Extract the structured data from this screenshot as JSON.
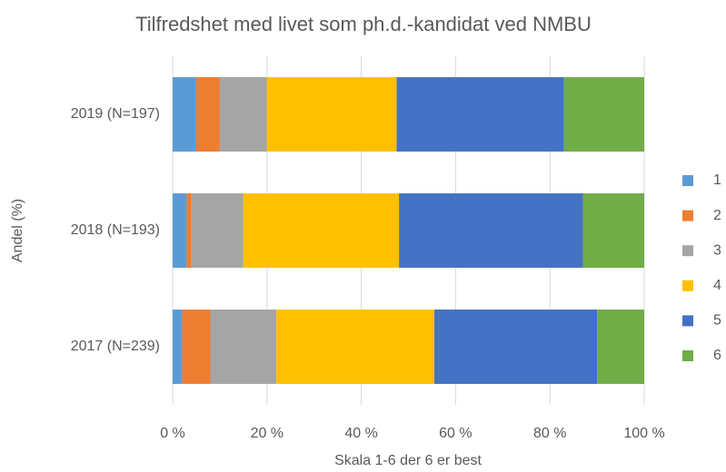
{
  "chart_data": {
    "type": "stacked_barh",
    "title": "Tilfredshet med livet som ph.d.-kandidat ved NMBU",
    "xlabel": "Skala 1-6 der 6 er best",
    "ylabel": "Andel (%)",
    "categories": [
      "2019 (N=197)",
      "2018 (N=193)",
      "2017 (N=239)"
    ],
    "series": [
      {
        "name": "1",
        "color": "#5b9bd5",
        "values": [
          5,
          3,
          2
        ]
      },
      {
        "name": "2",
        "color": "#ed7d31",
        "values": [
          5,
          1,
          6
        ]
      },
      {
        "name": "3",
        "color": "#a5a5a5",
        "values": [
          10,
          11,
          14
        ]
      },
      {
        "name": "4",
        "color": "#ffc000",
        "values": [
          27.5,
          33,
          33.5
        ]
      },
      {
        "name": "5",
        "color": "#4472c4",
        "values": [
          35.5,
          39,
          34.5
        ]
      },
      {
        "name": "6",
        "color": "#70ad47",
        "values": [
          17,
          13,
          10
        ]
      }
    ],
    "xlim": [
      0,
      100
    ],
    "xticks": [
      {
        "value": 0,
        "label": "0 %"
      },
      {
        "value": 20,
        "label": "20 %"
      },
      {
        "value": 40,
        "label": "40 %"
      },
      {
        "value": 60,
        "label": "60 %"
      },
      {
        "value": 80,
        "label": "80 %"
      },
      {
        "value": 100,
        "label": "100 %"
      }
    ],
    "grid": true,
    "legend": "right"
  }
}
